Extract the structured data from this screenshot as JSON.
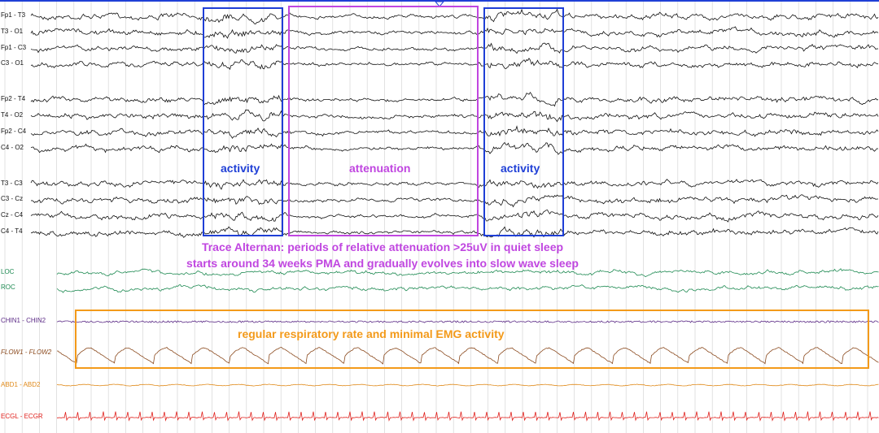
{
  "channels": [
    {
      "name": "Fp1 - T3",
      "color": "#111111",
      "type": "eeg"
    },
    {
      "name": "T3 - O1",
      "color": "#111111",
      "type": "eeg"
    },
    {
      "name": "Fp1 - C3",
      "color": "#111111",
      "type": "eeg"
    },
    {
      "name": "C3 - O1",
      "color": "#111111",
      "type": "eeg"
    },
    {
      "name": "Fp2 - T4",
      "color": "#111111",
      "type": "eeg"
    },
    {
      "name": "T4 - O2",
      "color": "#111111",
      "type": "eeg"
    },
    {
      "name": "Fp2 - C4",
      "color": "#111111",
      "type": "eeg"
    },
    {
      "name": "C4 - O2",
      "color": "#111111",
      "type": "eeg"
    },
    {
      "name": "T3 - C3",
      "color": "#111111",
      "type": "eeg"
    },
    {
      "name": "C3 - Cz",
      "color": "#111111",
      "type": "eeg"
    },
    {
      "name": "Cz - C4",
      "color": "#111111",
      "type": "eeg"
    },
    {
      "name": "C4 - T4",
      "color": "#111111",
      "type": "eeg"
    },
    {
      "name": "LOC",
      "color": "#1e8a52",
      "type": "eog"
    },
    {
      "name": "ROC",
      "color": "#1e8a52",
      "type": "eog"
    },
    {
      "name": "CHIN1 - CHIN2",
      "color": "#5b2a86",
      "type": "emg"
    },
    {
      "name": "FLOW1 - FLOW2",
      "color": "#8b4a1e",
      "type": "flow"
    },
    {
      "name": "ABD1 - ABD2",
      "color": "#e08a1a",
      "type": "abd"
    },
    {
      "name": "ECGL - ECGR",
      "color": "#e0201c",
      "type": "ecg"
    }
  ],
  "annotations": {
    "activity_left": {
      "text": "activity",
      "color": "#1f3fd6"
    },
    "attenuation": {
      "text": "attenuation",
      "color": "#c046e0"
    },
    "activity_right": {
      "text": "activity",
      "color": "#1f3fd6"
    },
    "respiratory": {
      "text": "regular respiratory rate and minimal EMG activity",
      "color": "#f39a1a"
    }
  },
  "caption": {
    "line1": "Trace Alternan: periods of relative attenuation >25uV in quiet sleep",
    "line2": "starts around 34 weeks PMA and gradually evolves into slow wave sleep",
    "color": "#c046e0"
  },
  "colors": {
    "grid": "#d6d6d6",
    "top_border": "#1f3fd6"
  }
}
